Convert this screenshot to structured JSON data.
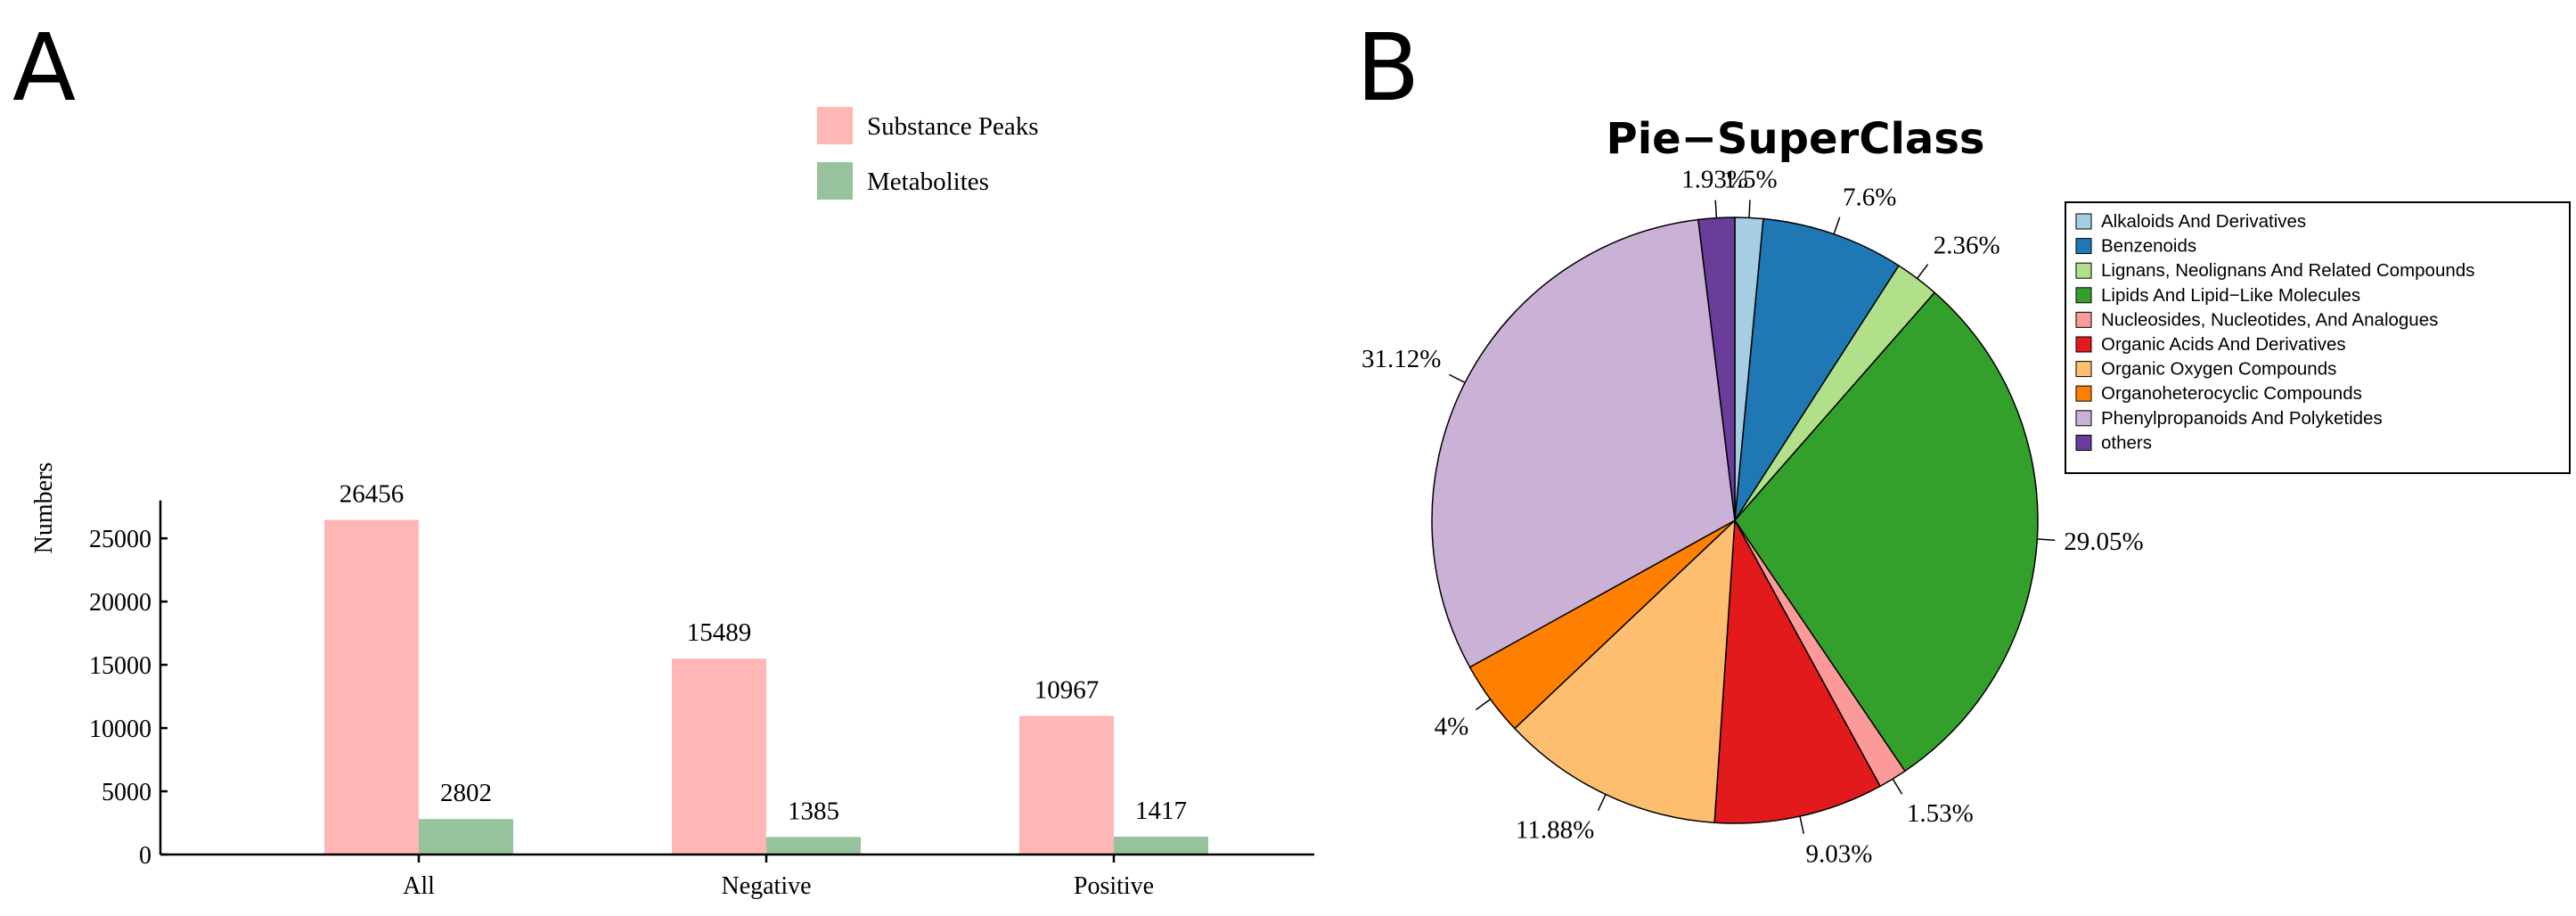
{
  "panels": {
    "a_label": "A",
    "b_label": "B"
  },
  "chart_data": [
    {
      "type": "bar",
      "title": "",
      "xlabel": "",
      "ylabel": "Numbers",
      "categories": [
        "All",
        "Negative",
        "Positive"
      ],
      "series": [
        {
          "name": "Substance Peaks",
          "color": "#FFB6B6",
          "values": [
            26456,
            15489,
            10967
          ]
        },
        {
          "name": "Metabolites",
          "color": "#97C29E",
          "values": [
            2802,
            1385,
            1417
          ]
        }
      ],
      "yticks": [
        0,
        5000,
        10000,
        15000,
        20000,
        25000
      ],
      "ylim": [
        0,
        28000
      ],
      "legend_position": "top-right",
      "grid": false
    },
    {
      "type": "pie",
      "title": "Pie−SuperClass",
      "start_angle_deg": 90,
      "direction": "clockwise",
      "slices": [
        {
          "name": "Alkaloids And Derivatives",
          "value": 1.5,
          "label": "1.5%",
          "color": "#A6CEE3"
        },
        {
          "name": "Benzenoids",
          "value": 7.6,
          "label": "7.6%",
          "color": "#1F78B4"
        },
        {
          "name": "Lignans, Neolignans And Related Compounds",
          "value": 2.36,
          "label": "2.36%",
          "color": "#B2DF8A"
        },
        {
          "name": "Lipids And Lipid−Like Molecules",
          "value": 29.05,
          "label": "29.05%",
          "color": "#33A02C"
        },
        {
          "name": "Nucleosides, Nucleotides, And Analogues",
          "value": 1.53,
          "label": "1.53%",
          "color": "#FB9A99"
        },
        {
          "name": "Organic Acids And Derivatives",
          "value": 9.03,
          "label": "9.03%",
          "color": "#E31A1C"
        },
        {
          "name": "Organic Oxygen Compounds",
          "value": 11.88,
          "label": "11.88%",
          "color": "#FDBF6F"
        },
        {
          "name": "Organoheterocyclic Compounds",
          "value": 4,
          "label": "4%",
          "color": "#FF7F00"
        },
        {
          "name": "Phenylpropanoids And Polyketides",
          "value": 31.12,
          "label": "31.12%",
          "color": "#CAB2D6"
        },
        {
          "name": "others",
          "value": 1.93,
          "label": "1.93%",
          "color": "#6A3D9A"
        }
      ],
      "legend_position": "right"
    }
  ]
}
